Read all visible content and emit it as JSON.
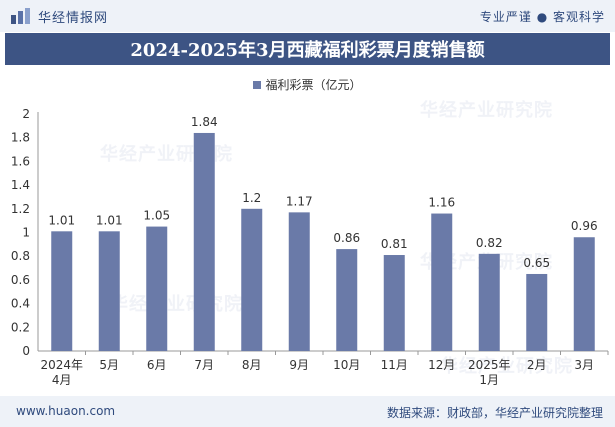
{
  "header": {
    "brand": "华经情报网",
    "tagline": "专业严谨 ● 客观科学"
  },
  "watermark": "华经产业研究院",
  "chart_data": {
    "type": "bar",
    "title": "2024-2025年3月西藏福利彩票月度销售额",
    "categories": [
      "2024年4月",
      "5月",
      "6月",
      "7月",
      "8月",
      "9月",
      "10月",
      "11月",
      "12月",
      "2025年1月",
      "2月",
      "3月"
    ],
    "series": [
      {
        "name": "福利彩票（亿元）",
        "values": [
          1.01,
          1.01,
          1.05,
          1.84,
          1.2,
          1.17,
          0.86,
          0.81,
          1.16,
          0.82,
          0.65,
          0.96
        ],
        "color": "#6a7aa8"
      }
    ],
    "value_labels": [
      "1.01",
      "1.01",
      "1.05",
      "1.84",
      "1.2",
      "1.17",
      "0.86",
      "0.81",
      "1.16",
      "0.82",
      "0.65",
      "0.96"
    ],
    "ylim": [
      0,
      2
    ],
    "yticks": [
      "0",
      "0.2",
      "0.4",
      "0.6",
      "0.8",
      "1",
      "1.2",
      "1.4",
      "1.6",
      "1.8",
      "2"
    ],
    "legend_position": "top-center",
    "grid": false
  },
  "footer": {
    "url": "www.huaon.com",
    "source": "数据来源：财政部，华经产业研究院整理"
  }
}
